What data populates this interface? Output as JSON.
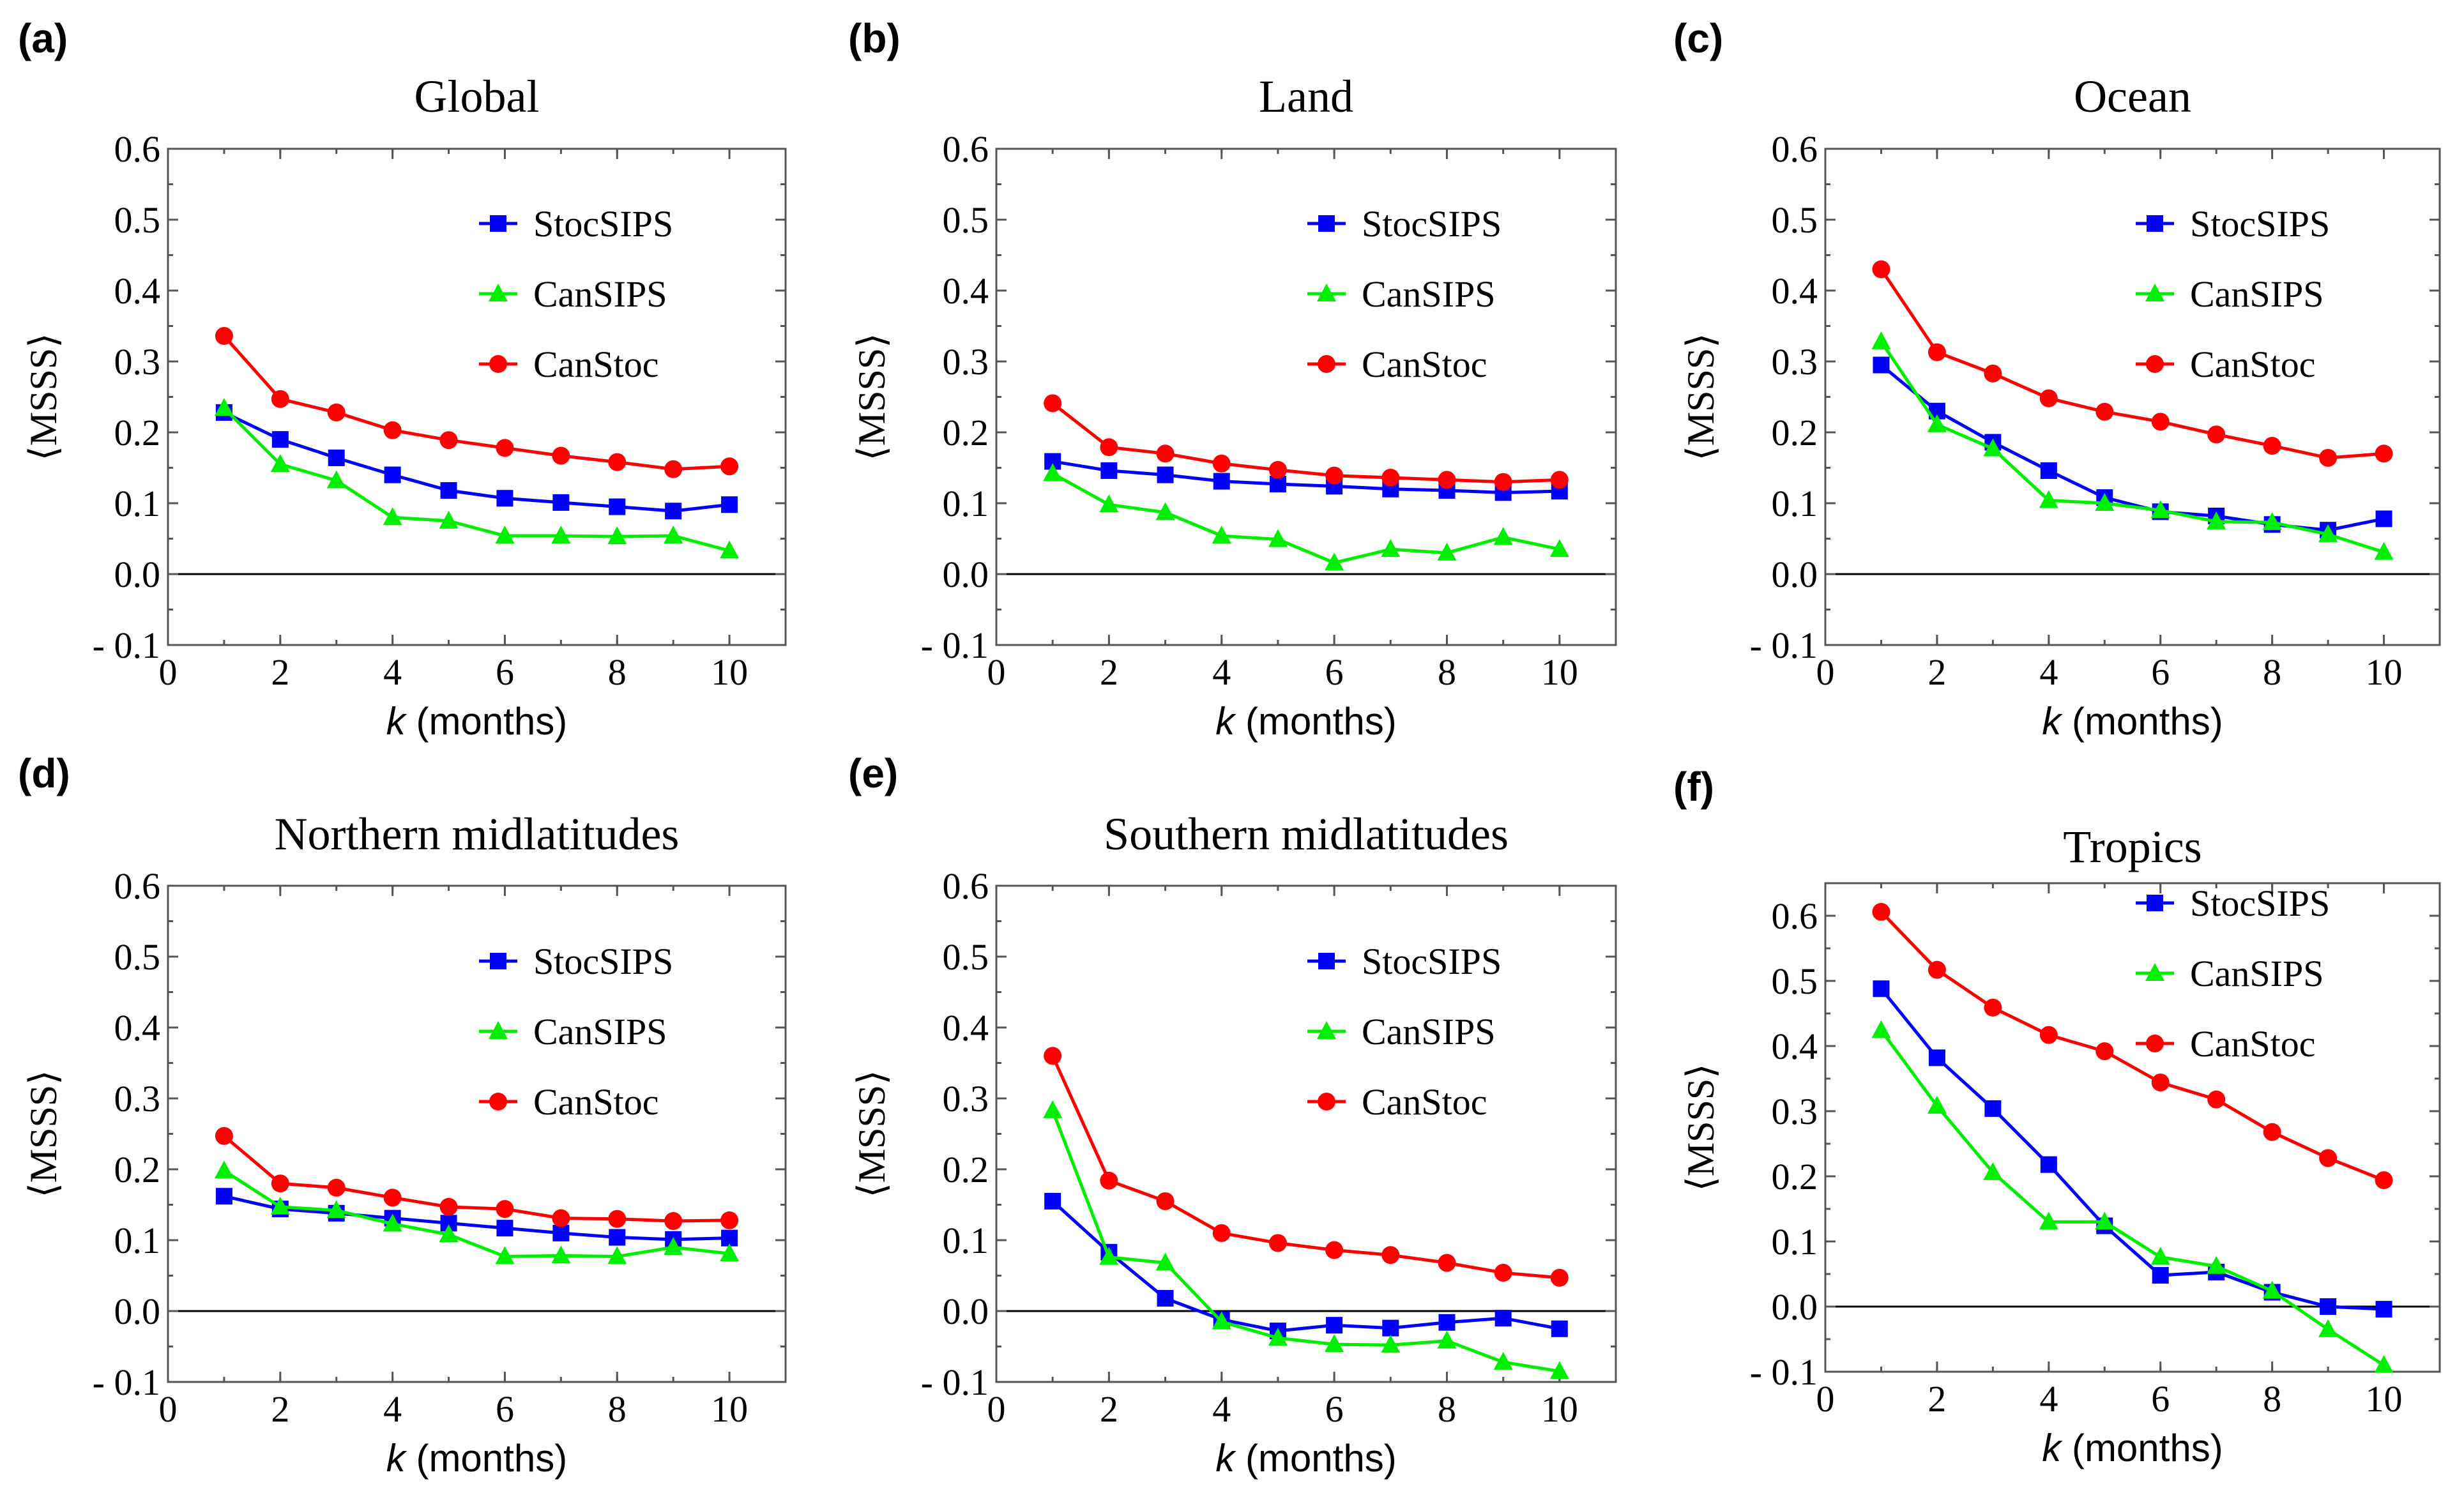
{
  "colors": {
    "StocSIPS": "#0000ff",
    "CanSIPS": "#00ee00",
    "CanStoc": "#ff0000",
    "zero_line": "#000000"
  },
  "legend_items": [
    {
      "name": "StocSIPS",
      "marker": "square",
      "color": "#0000ff"
    },
    {
      "name": "CanSIPS",
      "marker": "triangle",
      "color": "#00ee00"
    },
    {
      "name": "CanStoc",
      "marker": "circle",
      "color": "#ff0000"
    }
  ],
  "chart_data": [
    {
      "panel_label": "(a)",
      "type": "line",
      "title": "Global",
      "xlabel": {
        "var": "k",
        "unit": " (months)"
      },
      "ylabel": "⟨MSSS⟩",
      "xlim": [
        0,
        11
      ],
      "ylim": [
        -0.1,
        0.6
      ],
      "x_ticks": [
        0,
        2,
        4,
        6,
        8,
        10
      ],
      "y_ticks": [
        -0.1,
        0.0,
        0.1,
        0.2,
        0.3,
        0.4,
        0.5,
        0.6
      ],
      "y_tick_labels": [
        "- 0.1",
        "0.0",
        "0.1",
        "0.2",
        "0.3",
        "0.4",
        "0.5",
        "0.6"
      ],
      "legend_position": "top-right",
      "x": [
        1,
        2,
        3,
        4,
        5,
        6,
        7,
        8,
        9,
        10
      ],
      "series": [
        {
          "name": "StocSIPS",
          "values": [
            0.228,
            0.19,
            0.164,
            0.14,
            0.118,
            0.107,
            0.101,
            0.095,
            0.089,
            0.098
          ]
        },
        {
          "name": "CanSIPS",
          "values": [
            0.234,
            0.155,
            0.132,
            0.08,
            0.075,
            0.054,
            0.054,
            0.053,
            0.054,
            0.033
          ]
        },
        {
          "name": "CanStoc",
          "values": [
            0.336,
            0.247,
            0.228,
            0.203,
            0.189,
            0.178,
            0.167,
            0.158,
            0.148,
            0.152
          ]
        }
      ]
    },
    {
      "panel_label": "(b)",
      "type": "line",
      "title": "Land",
      "xlabel": {
        "var": "k",
        "unit": " (months)"
      },
      "ylabel": "⟨MSSS⟩",
      "xlim": [
        0,
        11
      ],
      "ylim": [
        -0.1,
        0.6
      ],
      "x_ticks": [
        0,
        2,
        4,
        6,
        8,
        10
      ],
      "y_ticks": [
        -0.1,
        0.0,
        0.1,
        0.2,
        0.3,
        0.4,
        0.5,
        0.6
      ],
      "y_tick_labels": [
        "- 0.1",
        "0.0",
        "0.1",
        "0.2",
        "0.3",
        "0.4",
        "0.5",
        "0.6"
      ],
      "legend_position": "top-right",
      "x": [
        1,
        2,
        3,
        4,
        5,
        6,
        7,
        8,
        9,
        10
      ],
      "series": [
        {
          "name": "StocSIPS",
          "values": [
            0.159,
            0.146,
            0.14,
            0.131,
            0.127,
            0.124,
            0.12,
            0.118,
            0.115,
            0.117
          ]
        },
        {
          "name": "CanSIPS",
          "values": [
            0.142,
            0.098,
            0.087,
            0.054,
            0.049,
            0.016,
            0.035,
            0.03,
            0.052,
            0.035
          ]
        },
        {
          "name": "CanStoc",
          "values": [
            0.241,
            0.179,
            0.17,
            0.156,
            0.147,
            0.139,
            0.136,
            0.133,
            0.13,
            0.133
          ]
        }
      ]
    },
    {
      "panel_label": "(c)",
      "type": "line",
      "title": "Ocean",
      "xlabel": {
        "var": "k",
        "unit": " (months)"
      },
      "ylabel": "⟨MSSS⟩",
      "xlim": [
        0,
        11
      ],
      "ylim": [
        -0.1,
        0.6
      ],
      "x_ticks": [
        0,
        2,
        4,
        6,
        8,
        10
      ],
      "y_ticks": [
        -0.1,
        0.0,
        0.1,
        0.2,
        0.3,
        0.4,
        0.5,
        0.6
      ],
      "y_tick_labels": [
        "- 0.1",
        "0.0",
        "0.1",
        "0.2",
        "0.3",
        "0.4",
        "0.5",
        "0.6"
      ],
      "legend_position": "top-right",
      "x": [
        1,
        2,
        3,
        4,
        5,
        6,
        7,
        8,
        9,
        10
      ],
      "series": [
        {
          "name": "StocSIPS",
          "values": [
            0.295,
            0.23,
            0.186,
            0.146,
            0.108,
            0.088,
            0.082,
            0.07,
            0.062,
            0.078
          ]
        },
        {
          "name": "CanSIPS",
          "values": [
            0.328,
            0.211,
            0.177,
            0.104,
            0.1,
            0.09,
            0.074,
            0.073,
            0.056,
            0.031
          ]
        },
        {
          "name": "CanStoc",
          "values": [
            0.43,
            0.313,
            0.283,
            0.248,
            0.229,
            0.215,
            0.197,
            0.181,
            0.164,
            0.17
          ]
        }
      ]
    },
    {
      "panel_label": "(d)",
      "type": "line",
      "title": "Northern midlatitudes",
      "xlabel": {
        "var": "k",
        "unit": " (months)"
      },
      "ylabel": "⟨MSSS⟩",
      "xlim": [
        0,
        11
      ],
      "ylim": [
        -0.1,
        0.6
      ],
      "x_ticks": [
        0,
        2,
        4,
        6,
        8,
        10
      ],
      "y_ticks": [
        -0.1,
        0.0,
        0.1,
        0.2,
        0.3,
        0.4,
        0.5,
        0.6
      ],
      "y_tick_labels": [
        "- 0.1",
        "0.0",
        "0.1",
        "0.2",
        "0.3",
        "0.4",
        "0.5",
        "0.6"
      ],
      "legend_position": "top-right",
      "x": [
        1,
        2,
        3,
        4,
        5,
        6,
        7,
        8,
        9,
        10
      ],
      "series": [
        {
          "name": "StocSIPS",
          "values": [
            0.162,
            0.144,
            0.138,
            0.131,
            0.124,
            0.117,
            0.11,
            0.104,
            0.101,
            0.103
          ]
        },
        {
          "name": "CanSIPS",
          "values": [
            0.198,
            0.147,
            0.142,
            0.123,
            0.108,
            0.077,
            0.078,
            0.077,
            0.09,
            0.081
          ]
        },
        {
          "name": "CanStoc",
          "values": [
            0.247,
            0.18,
            0.174,
            0.16,
            0.147,
            0.144,
            0.131,
            0.13,
            0.127,
            0.128
          ]
        }
      ]
    },
    {
      "panel_label": "(e)",
      "type": "line",
      "title": "Southern midlatitudes",
      "xlabel": {
        "var": "k",
        "unit": " (months)"
      },
      "ylabel": "⟨MSSS⟩",
      "xlim": [
        0,
        11
      ],
      "ylim": [
        -0.1,
        0.6
      ],
      "x_ticks": [
        0,
        2,
        4,
        6,
        8,
        10
      ],
      "y_ticks": [
        -0.1,
        0.0,
        0.1,
        0.2,
        0.3,
        0.4,
        0.5,
        0.6
      ],
      "y_tick_labels": [
        "- 0.1",
        "0.0",
        "0.1",
        "0.2",
        "0.3",
        "0.4",
        "0.5",
        "0.6"
      ],
      "legend_position": "top-right",
      "x": [
        1,
        2,
        3,
        4,
        5,
        6,
        7,
        8,
        9,
        10
      ],
      "series": [
        {
          "name": "StocSIPS",
          "values": [
            0.155,
            0.083,
            0.018,
            -0.012,
            -0.028,
            -0.02,
            -0.024,
            -0.016,
            -0.01,
            -0.025
          ]
        },
        {
          "name": "CanSIPS",
          "values": [
            0.283,
            0.076,
            0.068,
            -0.015,
            -0.038,
            -0.047,
            -0.048,
            -0.042,
            -0.072,
            -0.085
          ]
        },
        {
          "name": "CanStoc",
          "values": [
            0.36,
            0.184,
            0.155,
            0.11,
            0.096,
            0.086,
            0.079,
            0.068,
            0.054,
            0.047
          ]
        }
      ]
    },
    {
      "panel_label": "(f)",
      "type": "line",
      "title": "Tropics",
      "xlabel": {
        "var": "k",
        "unit": " (months)"
      },
      "ylabel": "⟨MSSS⟩",
      "xlim": [
        0,
        11
      ],
      "ylim": [
        -0.1,
        0.65
      ],
      "x_ticks": [
        0,
        2,
        4,
        6,
        8,
        10
      ],
      "y_ticks": [
        -0.1,
        0.0,
        0.1,
        0.2,
        0.3,
        0.4,
        0.5,
        0.6
      ],
      "y_tick_labels": [
        "- 0.1",
        "0.0",
        "0.1",
        "0.2",
        "0.3",
        "0.4",
        "0.5",
        "0.6"
      ],
      "legend_position": "top-right",
      "x": [
        1,
        2,
        3,
        4,
        5,
        6,
        7,
        8,
        9,
        10
      ],
      "series": [
        {
          "name": "StocSIPS",
          "values": [
            0.488,
            0.382,
            0.304,
            0.218,
            0.124,
            0.048,
            0.053,
            0.022,
            0.0,
            -0.004
          ]
        },
        {
          "name": "CanSIPS",
          "values": [
            0.424,
            0.308,
            0.206,
            0.13,
            0.13,
            0.076,
            0.062,
            0.024,
            -0.035,
            -0.09
          ]
        },
        {
          "name": "CanStoc",
          "values": [
            0.606,
            0.517,
            0.459,
            0.417,
            0.392,
            0.344,
            0.318,
            0.268,
            0.228,
            0.194
          ]
        }
      ]
    }
  ]
}
